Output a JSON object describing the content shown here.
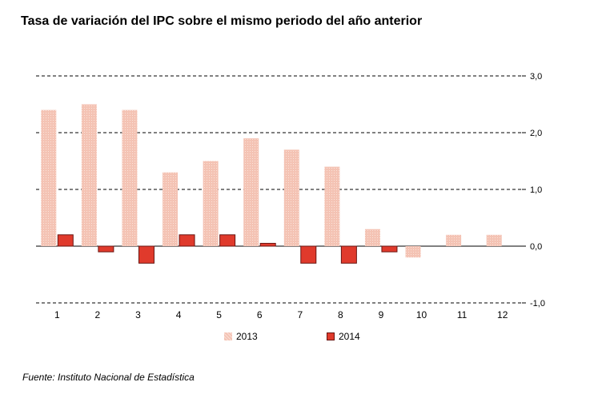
{
  "page_title": "Tasa de variación del IPC sobre el mismo periodo del año anterior",
  "source_note": "Fuente: Instituto Nacional de Estadística",
  "colors": {
    "s2013": "#f4c3b4",
    "s2014": "#e03a2c",
    "s2014_border": "#6a1410"
  },
  "chart_data": {
    "type": "bar",
    "categories": [
      "1",
      "2",
      "3",
      "4",
      "5",
      "6",
      "7",
      "8",
      "9",
      "10",
      "11",
      "12"
    ],
    "series": [
      {
        "name": "2013",
        "values": [
          2.4,
          2.5,
          2.4,
          1.3,
          1.5,
          1.9,
          1.7,
          1.4,
          0.3,
          -0.2,
          0.2,
          0.2
        ]
      },
      {
        "name": "2014",
        "values": [
          0.2,
          -0.1,
          -0.3,
          0.2,
          0.2,
          0.05,
          -0.3,
          -0.3,
          -0.1,
          null,
          null,
          null
        ]
      }
    ],
    "yticks": [
      "3,0",
      "2,0",
      "1,0",
      "0,0",
      "-1,0"
    ],
    "ylim": [
      -1,
      3
    ],
    "grid": "dashed horizontal",
    "legend": "bottom",
    "y_axis_side": "right"
  }
}
